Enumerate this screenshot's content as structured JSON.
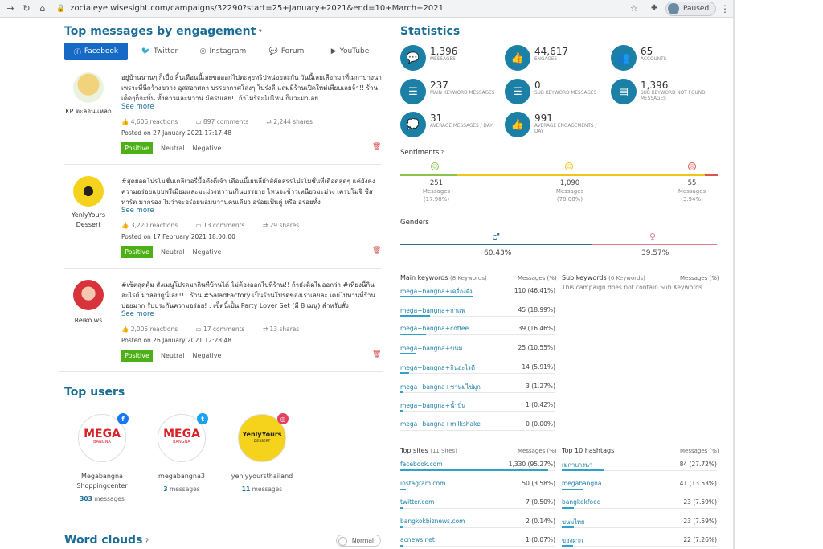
{
  "browser": {
    "url": "zocialeye.wisesight.com/campaigns/32290?start=25+January+2021&end=10+March+2021",
    "profile_label": "Paused"
  },
  "engagement": {
    "title": "Top messages by engagement",
    "tabs": [
      "Facebook",
      "Twitter",
      "Instagram",
      "Forum",
      "YouTube"
    ],
    "posts": [
      {
        "author": "KP ตะลอนแหลก",
        "text": "อยู่บ้านนานๆ ก็เบื่อ สิ้นเดือนนี้เลยขอออกไปตะลุยทริปหน่อยละกัน วันนี้เลยเลือกมาที่เมกาบางนา เพราะที่นี่กว้างขวาง อุสสอาศดา บรรยากาศโล่งๆ โปร่งดี แถมมีร้านเปิดใหม่เพียบเลยจ้า!! ร้านเด็ดๆก็จะบั้น ทั้งคาวและหวาน มีครบเลย!! ถ้าไม่รีจะไปไหน ก็แวะมาเลย",
        "see_more": "See more",
        "reactions": "4,606 reactions",
        "comments": "897 comments",
        "shares": "2,244 shares",
        "posted": "Posted on 27 January 2021 17:17:48"
      },
      {
        "author": "YenlyYours Dessert",
        "text": "#สุดยอดโปรโมชั่นเดลิเวอรี่มื้อดึงดี่เจ้า เดือนนี้เยนลี่ยัวส์คัดสรรโปรโมชั่นที่เดือดสุดๆ แค่ยังคงความอร่อยแบบพรีเมียมและมะม่วงหวานเกินบรรยาย ไหนจะข้าวเหนียวมะม่วง เครปโมจิ ชีสทาร์ต มากรอง ไม่ว่าจะอร่อยหอมหวานคนเดียว อร่อยเป็นคู่ หรือ อร่อยทั้ง",
        "see_more": "See more",
        "reactions": "3,220 reactions",
        "comments": "13 comments",
        "shares": "29 shares",
        "posted": "Posted on 17 February 2021 18:00:00"
      },
      {
        "author": "Reiko.ws",
        "text": "#เซ็ตสุดคุ้ม สั่งเมนูโปรดมากินที่บ้านได้ ไม่ต้องออกไปที่ร้าน!! ถ้ายังคิดไม่ออกว่า #เที่ยงนี้กินอะไรดี มาลองดูนี่เลย!! . ร้าน #SaladFactory เป็นร้านโปรดของเราเลยล่ะ เคยไปทานที่ร้านบ่อยมาก รับประกันความอร่อย! . เซ็ตนี้เป็น Party Lover Set (มี 8 เมนู) สำหรับสั่ง",
        "see_more": "See more",
        "reactions": "2,005 reactions",
        "comments": "17 comments",
        "shares": "13 shares",
        "posted": "Posted on 26 January 2021 12:28:48"
      }
    ],
    "sentiment_labels": [
      "Positive",
      "Neutral",
      "Negative"
    ]
  },
  "top_users": {
    "title": "Top users",
    "users": [
      {
        "name": "Megabangna Shoppingcenter",
        "count": "303",
        "suffix": "messages",
        "logo_text": "MEGA",
        "logo_sub": "BANGNA",
        "badge": "f",
        "badge_color": "#1877f2"
      },
      {
        "name": "megabangna3",
        "count": "3",
        "suffix": "messages",
        "logo_text": "MEGA",
        "logo_sub": "BANGNA",
        "badge": "t",
        "badge_color": "#1da1f2"
      },
      {
        "name": "yenlyyoursthailand",
        "count": "11",
        "suffix": "messages",
        "logo_text": "YenlyYours",
        "logo_sub": "DESSERT",
        "badge": "◎",
        "badge_color": "#e4405f"
      }
    ]
  },
  "word_clouds": {
    "title": "Word clouds",
    "toggle_label": "Normal"
  },
  "statistics": {
    "title": "Statistics",
    "items": [
      {
        "value": "1,396",
        "label": "Messages",
        "icon": "chat-bubble-icon"
      },
      {
        "value": "44,617",
        "label": "Engages",
        "icon": "thumbs-up-icon"
      },
      {
        "value": "65",
        "label": "Accounts",
        "icon": "people-icon"
      },
      {
        "value": "237",
        "label": "Main keyword messages",
        "icon": "list-icon"
      },
      {
        "value": "0",
        "label": "Sub keyword messages",
        "icon": "list-icon"
      },
      {
        "value": "1,396",
        "label": "Sub keyword not found messages",
        "icon": "list-box-icon"
      },
      {
        "value": "31",
        "label": "Average messages / day",
        "icon": "chat-bubbles-icon"
      },
      {
        "value": "991",
        "label": "Average engagements / day",
        "icon": "thumbs-up-icon"
      }
    ]
  },
  "sentiments": {
    "title": "Sentiments",
    "items": [
      {
        "count": "251",
        "unit": "Messages",
        "pct": "(17.98%)",
        "share": 0.1798,
        "color": "#8bc34a"
      },
      {
        "count": "1,090",
        "unit": "Messages",
        "pct": "(78.08%)",
        "share": 0.7808,
        "color": "#f0c419"
      },
      {
        "count": "55",
        "unit": "Messages",
        "pct": "(3.94%)",
        "share": 0.0394,
        "color": "#d9534f"
      }
    ]
  },
  "genders": {
    "title": "Genders",
    "male_pct": "60.43%",
    "female_pct": "39.57%",
    "male_share": 0.6043,
    "male_color": "#2b6a91",
    "female_color": "#e07b8a"
  },
  "main_keywords": {
    "title": "Main keywords",
    "count": "(8 Keywords)",
    "col": "Messages (%)",
    "rows": [
      {
        "name": "mega+bangna+เครื่องดื่ม",
        "value": "110 (46.41%)",
        "share": 0.4641
      },
      {
        "name": "mega+bangna+กาแฟ",
        "value": "45 (18.99%)",
        "share": 0.1899
      },
      {
        "name": "mega+bangna+coffee",
        "value": "39 (16.46%)",
        "share": 0.1646
      },
      {
        "name": "mega+bangna+ขนม",
        "value": "25 (10.55%)",
        "share": 0.1055
      },
      {
        "name": "mega+bangna+กินอะไรดี",
        "value": "14 (5.91%)",
        "share": 0.0591
      },
      {
        "name": "mega+bangna+ชานมไข่มุก",
        "value": "3 (1.27%)",
        "share": 0.0127
      },
      {
        "name": "mega+bangna+น้ำปั่น",
        "value": "1 (0.42%)",
        "share": 0.0042
      },
      {
        "name": "mega+bangna+milkshake",
        "value": "0 (0.00%)",
        "share": 0
      }
    ]
  },
  "sub_keywords": {
    "title": "Sub keywords",
    "count": "(0 Keywords)",
    "col": "Messages (%)",
    "empty": "This campaign does not contain Sub Keywords"
  },
  "top_sites": {
    "title": "Top sites",
    "count": "(11 Sites)",
    "col": "Messages (%)",
    "rows": [
      {
        "name": "facebook.com",
        "value": "1,330 (95.27%)",
        "share": 0.9527
      },
      {
        "name": "instagram.com",
        "value": "50 (3.58%)",
        "share": 0.0358
      },
      {
        "name": "twitter.com",
        "value": "7 (0.50%)",
        "share": 0.005
      },
      {
        "name": "bangkokbiznews.com",
        "value": "2 (0.14%)",
        "share": 0.0014
      },
      {
        "name": "acnews.net",
        "value": "1 (0.07%)",
        "share": 0.0007
      }
    ]
  },
  "top_hashtags": {
    "title": "Top 10 hashtags",
    "col": "Messages (%)",
    "rows": [
      {
        "name": "เมกาบางนา",
        "value": "84 (27.72%)",
        "share": 0.2772
      },
      {
        "name": "megabangna",
        "value": "41 (13.53%)",
        "share": 0.1353
      },
      {
        "name": "bangkokfood",
        "value": "23 (7.59%)",
        "share": 0.0759
      },
      {
        "name": "ขนมไทย",
        "value": "23 (7.59%)",
        "share": 0.0759
      },
      {
        "name": "ของฝาก",
        "value": "22 (7.26%)",
        "share": 0.0726
      }
    ]
  }
}
